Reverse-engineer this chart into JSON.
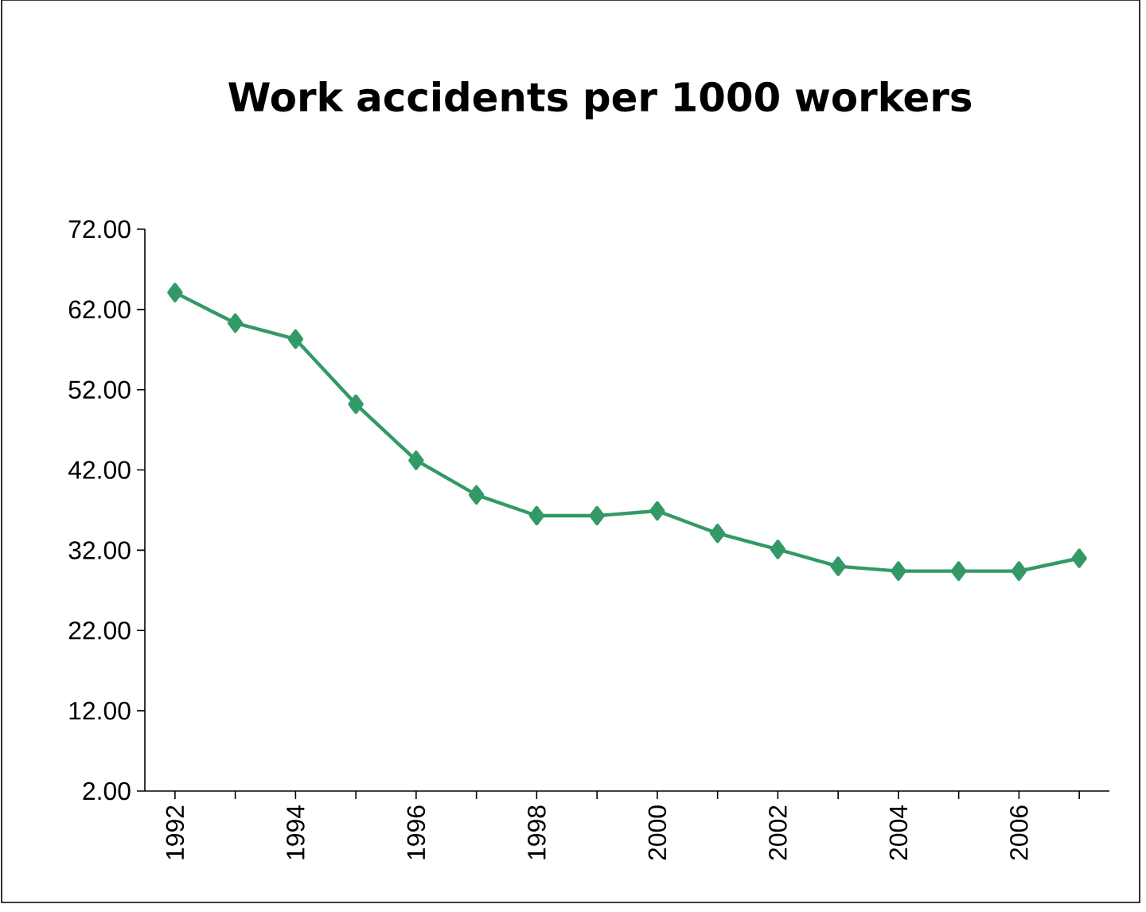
{
  "chart_data": {
    "type": "line",
    "title": "Work accidents per 1000 workers",
    "categories": [
      "1992",
      null,
      "1994",
      null,
      "1996",
      null,
      "1998",
      null,
      "2000",
      null,
      "2002",
      null,
      "2004",
      null,
      "2006",
      null
    ],
    "series": [
      {
        "color": "#339966",
        "values": [
          64.1,
          60.3,
          58.3,
          50.2,
          43.2,
          38.9,
          36.3,
          36.3,
          36.9,
          34.1,
          32.1,
          30.0,
          29.4,
          29.4,
          29.4,
          31.0
        ]
      }
    ],
    "ylim": [
      2,
      72
    ],
    "yticks": [
      {
        "value": 2,
        "label": "2.00"
      },
      {
        "value": 12,
        "label": "12.00"
      },
      {
        "value": 22,
        "label": "22.00"
      },
      {
        "value": 32,
        "label": "32.00"
      },
      {
        "value": 42,
        "label": "42.00"
      },
      {
        "value": 52,
        "label": "52.00"
      },
      {
        "value": 62,
        "label": "62.00"
      },
      {
        "value": 72,
        "label": "72.00"
      }
    ],
    "marker": "diamond",
    "line_style": "solid"
  }
}
